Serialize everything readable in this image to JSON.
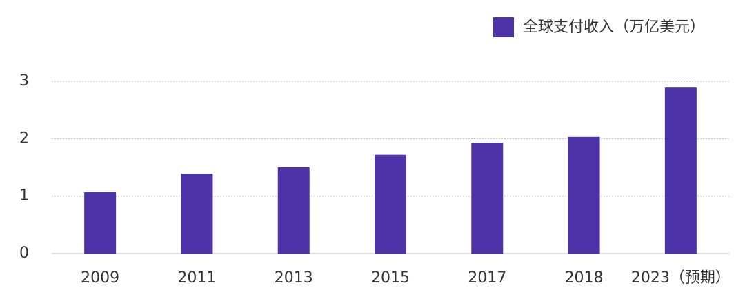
{
  "chart_data": {
    "type": "bar",
    "categories": [
      "2009",
      "2011",
      "2013",
      "2015",
      "2017",
      "2018",
      "2023（预期）"
    ],
    "series": [
      {
        "name": "全球支付收入（万亿美元）",
        "color": "#4e32a8",
        "values": [
          1.07,
          1.39,
          1.5,
          1.72,
          1.93,
          2.03,
          2.89
        ]
      }
    ],
    "ylim": [
      0,
      3
    ],
    "yticks": [
      0,
      1,
      2,
      3
    ],
    "grid": true,
    "legend": "top-right"
  }
}
